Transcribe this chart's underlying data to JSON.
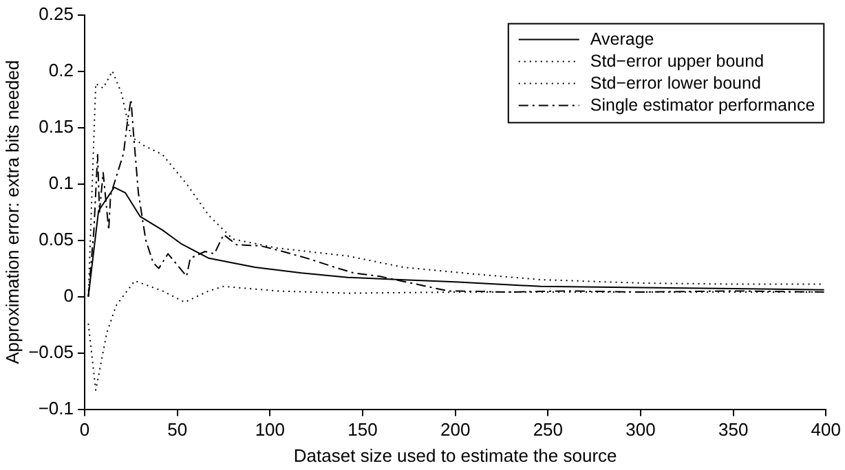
{
  "chart_data": {
    "type": "line",
    "xlabel": "Dataset size used to estimate the source",
    "ylabel": "Approximation error: extra bits needed",
    "xlim": [
      0,
      400
    ],
    "xticks": [
      0,
      50,
      100,
      150,
      200,
      250,
      300,
      350,
      400
    ],
    "ylim": [
      -0.1,
      0.25
    ],
    "yticks": [
      {
        "value": -0.1,
        "label": "−0.1"
      },
      {
        "value": -0.05,
        "label": "−0.05"
      },
      0,
      0.05,
      0.1,
      0.15,
      0.2,
      0.25
    ],
    "grid": false,
    "legend": "top right",
    "marker": "none",
    "series": [
      {
        "name": "Average",
        "color": "#000000",
        "line_style": "solid",
        "x": [
          2,
          7.5,
          16,
          22,
          30,
          42,
          52,
          67,
          92,
          117,
          142,
          170,
          200,
          246,
          300,
          350,
          399
        ],
        "values": [
          0,
          0.076,
          0.097,
          0.092,
          0.071,
          0.059,
          0.047,
          0.034,
          0.026,
          0.021,
          0.017,
          0.015,
          0.013,
          0.009,
          0.008,
          0.007,
          0.006
        ]
      },
      {
        "name": "Std−error upper bound",
        "color": "#000000",
        "line_style": "dotted",
        "x": [
          2,
          6,
          10,
          15,
          20,
          25,
          32,
          42,
          55,
          67,
          80,
          104,
          142,
          172,
          210,
          246,
          300,
          350,
          398
        ],
        "values": [
          0,
          0.189,
          0.185,
          0.2,
          0.18,
          0.142,
          0.134,
          0.126,
          0.1,
          0.072,
          0.051,
          0.043,
          0.036,
          0.026,
          0.02,
          0.015,
          0.012,
          0.011,
          0.011
        ]
      },
      {
        "name": "Std−error lower bound",
        "color": "#000000",
        "line_style": "dotted",
        "x": [
          2,
          6,
          12,
          17,
          27,
          42,
          54,
          67,
          75,
          104,
          142,
          200,
          250,
          300,
          350,
          398
        ],
        "values": [
          -0.024,
          -0.083,
          -0.032,
          -0.008,
          0.014,
          0.005,
          -0.005,
          0.005,
          0.009,
          0.005,
          0.003,
          0.004,
          0.004,
          0.004,
          0.004,
          0.004
        ]
      },
      {
        "name": "Single estimator performance",
        "color": "#000000",
        "line_style": "dashed",
        "x": [
          2,
          5,
          7,
          8,
          10,
          13,
          14,
          21,
          23,
          25,
          26.5,
          29,
          33,
          37,
          40,
          45,
          50,
          55,
          57,
          65,
          70,
          75,
          82,
          95,
          107,
          120,
          135,
          145,
          159,
          196,
          230,
          260,
          300,
          350,
          399
        ],
        "values": [
          0,
          0.059,
          0.126,
          0.075,
          0.11,
          0.059,
          0.09,
          0.127,
          0.154,
          0.175,
          0.142,
          0.092,
          0.05,
          0.03,
          0.025,
          0.038,
          0.028,
          0.018,
          0.034,
          0.04,
          0.038,
          0.055,
          0.046,
          0.045,
          0.04,
          0.034,
          0.026,
          0.021,
          0.018,
          0.005,
          0.004,
          0.005,
          0.004,
          0.005,
          0.004
        ]
      }
    ]
  }
}
